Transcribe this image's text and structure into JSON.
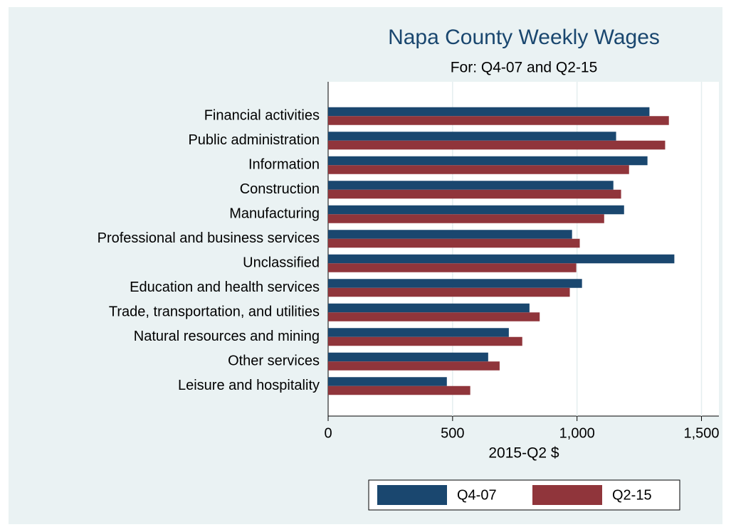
{
  "chart_data": {
    "type": "barh",
    "title": "Napa County Weekly Wages",
    "subtitle": "For: Q4-07 and Q2-15",
    "x_label": "2015-Q2 $",
    "categories": [
      "Financial activities",
      "Public administration",
      "Information",
      "Construction",
      "Manufacturing",
      "Professional and business services",
      "Unclassified",
      "Education and health services",
      "Trade, transportation, and utilities",
      "Natural resources and mining",
      "Other services",
      "Leisure and hospitality"
    ],
    "series": [
      {
        "name": "Q4-07",
        "color": "#1a476f",
        "values": [
          1291,
          1157,
          1283,
          1146,
          1189,
          980,
          1391,
          1020,
          809,
          726,
          643,
          477
        ]
      },
      {
        "name": "Q2-15",
        "color": "#90353b",
        "values": [
          1369,
          1354,
          1209,
          1177,
          1109,
          1011,
          997,
          971,
          850,
          780,
          689,
          571
        ]
      }
    ],
    "xlim": [
      0,
      1570
    ],
    "xticks": [
      0,
      500,
      {
        "value": 1000,
        "label": "1,000"
      },
      {
        "value": 1500,
        "label": "1,500"
      }
    ],
    "grid": true,
    "legend": "bottom"
  }
}
